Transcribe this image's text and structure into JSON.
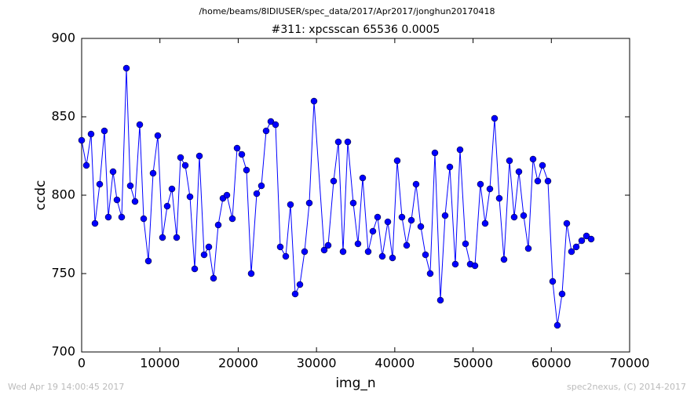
{
  "chart_data": {
    "type": "line",
    "suptitle": "/home/beams/8IDIUSER/spec_data/2017/Apr2017/jonghun20170418",
    "title": "#311: xpcsscan 65536 0.0005",
    "x_label": "img_n",
    "y_label": "ccdc",
    "timestamp": "Wed Apr 19 14:00:45 2017",
    "credit": "spec2nexus, (C) 2014-2017",
    "xlim": [
      0,
      70000
    ],
    "xticks": [
      0,
      10000,
      20000,
      30000,
      40000,
      50000,
      60000,
      70000
    ],
    "ylim": [
      700,
      900
    ],
    "yticks": [
      700,
      750,
      800,
      850,
      900
    ],
    "x": [
      0,
      602,
      1203,
      1705,
      2307,
      2908,
      3410,
      4012,
      4513,
      5115,
      5716,
      6218,
      6820,
      7421,
      7923,
      8525,
      9126,
      9728,
      10330,
      10931,
      11533,
      12135,
      12636,
      13238,
      13840,
      14441,
      15043,
      15645,
      16246,
      16848,
      17450,
      18051,
      18553,
      19255,
      19856,
      20458,
      21060,
      21661,
      22363,
      22965,
      23567,
      24168,
      24770,
      25372,
      26074,
      26675,
      27277,
      27879,
      28480,
      29082,
      29684,
      30987,
      31488,
      32190,
      32792,
      33394,
      33995,
      34697,
      35299,
      35901,
      36603,
      37204,
      37806,
      38408,
      39110,
      39711,
      40313,
      40915,
      41517,
      42118,
      42720,
      43322,
      43924,
      44525,
      45127,
      45829,
      46431,
      47032,
      47734,
      48336,
      49038,
      49640,
      50241,
      50943,
      51545,
      52147,
      52748,
      53350,
      53952,
      54654,
      55256,
      55857,
      56459,
      57061,
      57663,
      58264,
      58866,
      59568,
      60170,
      60771,
      61373,
      61975,
      62577,
      63178,
      63880,
      64482,
      65084
    ],
    "series": [
      {
        "name": "ccdc",
        "color": "#0000ff",
        "values": [
          835,
          819,
          839,
          782,
          807,
          841,
          786,
          815,
          797,
          786,
          881,
          806,
          796,
          845,
          785,
          758,
          814,
          838,
          773,
          793,
          804,
          773,
          824,
          819,
          799,
          753,
          825,
          762,
          767,
          747,
          781,
          798,
          800,
          785,
          830,
          826,
          816,
          750,
          801,
          806,
          841,
          847,
          845,
          767,
          761,
          794,
          737,
          743,
          764,
          795,
          860,
          765,
          768,
          809,
          834,
          764,
          834,
          795,
          769,
          811,
          764,
          777,
          786,
          761,
          783,
          760,
          822,
          786,
          768,
          784,
          807,
          780,
          762,
          750,
          827,
          733,
          787,
          818,
          756,
          829,
          769,
          756,
          755,
          807,
          782,
          804,
          849,
          798,
          759,
          822,
          786,
          815,
          787,
          766,
          823,
          809,
          819,
          809,
          745,
          717,
          737,
          782,
          764,
          767,
          771,
          774,
          772
        ]
      }
    ]
  }
}
